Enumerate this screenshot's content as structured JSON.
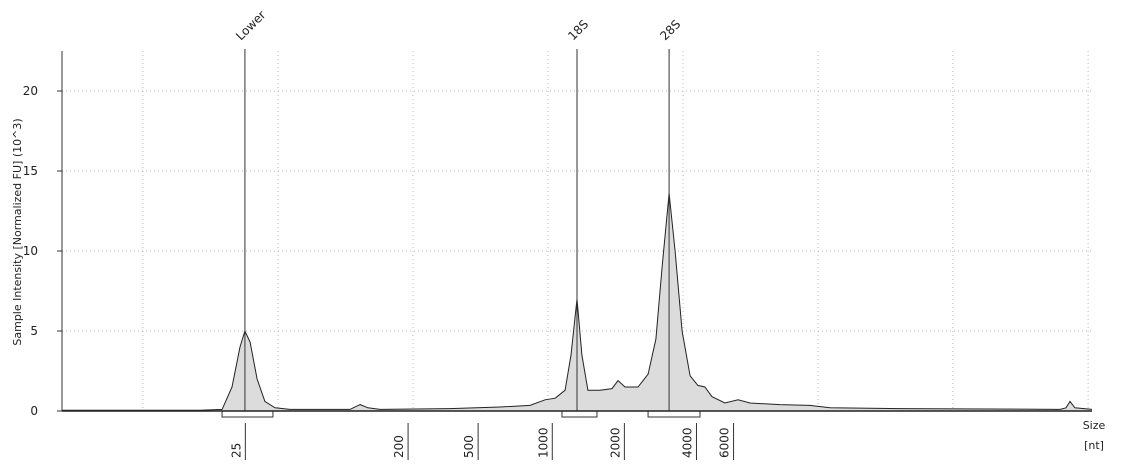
{
  "chart_data": {
    "type": "area",
    "y_label": "Sample Intensity [Normalized FU] (10^3)",
    "x_label": [
      "Size",
      "[nt]"
    ],
    "xlim": [
      19,
      69
    ],
    "ylim": [
      0,
      22.5
    ],
    "yticks": [
      0,
      5,
      10,
      15,
      20
    ],
    "xticks": [
      {
        "value": 27.9,
        "label": "25"
      },
      {
        "value": 35.8,
        "label": "200"
      },
      {
        "value": 39.2,
        "label": "500"
      },
      {
        "value": 42.8,
        "label": "1000"
      },
      {
        "value": 46.3,
        "label": "2000"
      },
      {
        "value": 49.8,
        "label": "4000"
      },
      {
        "value": 51.6,
        "label": "6000"
      }
    ],
    "xgrid": [
      22.93,
      29.49,
      36.04,
      42.59,
      49.15,
      55.7,
      62.25,
      68.81
    ],
    "grid": true,
    "color": "#dcdcdc",
    "line_color": "#222222",
    "x": [
      19.0,
      25.7,
      26.77,
      27.25,
      27.64,
      27.88,
      28.13,
      28.47,
      28.85,
      29.34,
      30.07,
      32.98,
      33.47,
      33.85,
      34.44,
      37.83,
      40.26,
      41.72,
      42.45,
      42.94,
      43.42,
      43.71,
      44.0,
      44.24,
      44.53,
      45.12,
      45.7,
      45.99,
      46.33,
      46.96,
      47.45,
      47.83,
      48.13,
      48.47,
      48.76,
      49.1,
      49.49,
      49.87,
      50.21,
      50.55,
      51.18,
      51.82,
      52.4,
      53.85,
      55.31,
      56.28,
      59.68,
      67.45,
      67.74,
      67.93,
      68.17,
      69.0
    ],
    "values": [
      0.05,
      0.05,
      0.1,
      1.5,
      4.0,
      5.0,
      4.3,
      2.0,
      0.6,
      0.2,
      0.1,
      0.1,
      0.4,
      0.2,
      0.1,
      0.15,
      0.25,
      0.35,
      0.7,
      0.8,
      1.3,
      3.5,
      7.0,
      3.5,
      1.3,
      1.3,
      1.4,
      1.9,
      1.5,
      1.5,
      2.3,
      4.5,
      9.0,
      13.6,
      10.0,
      5.0,
      2.2,
      1.6,
      1.5,
      0.9,
      0.5,
      0.7,
      0.5,
      0.4,
      0.35,
      0.2,
      0.15,
      0.1,
      0.2,
      0.6,
      0.2,
      0.1
    ],
    "peaks": [
      {
        "name": "Lower",
        "x": 27.88
      },
      {
        "name": "18S",
        "x": 44.0
      },
      {
        "name": "28S",
        "x": 48.47
      }
    ],
    "regions": [
      [
        26.77,
        29.24
      ],
      [
        43.27,
        44.97
      ],
      [
        47.45,
        49.97
      ]
    ]
  }
}
